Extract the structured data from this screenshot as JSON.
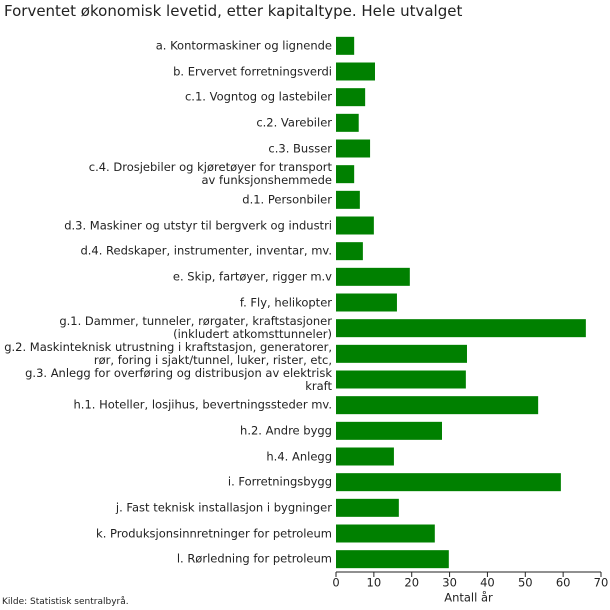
{
  "chart_data": {
    "type": "bar",
    "orientation": "horizontal",
    "title": "Forventet økonomisk levetid, etter kapitaltype. Hele utvalget",
    "source": "Kilde: Statistisk sentralbyrå.",
    "x_label": "Antall år",
    "categories": [
      "a. Kontormaskiner og lignende",
      "b. Ervervet forretningsverdi",
      "c.1. Vogntog og lastebiler",
      "c.2. Varebiler",
      "c.3. Busser",
      "c.4. Drosjebiler og kjøretøyer for transport\nav funksjonshemmede",
      "d.1. Personbiler",
      "d.3. Maskiner og utstyr til bergverk og industri",
      "d.4. Redskaper, instrumenter, inventar, mv.",
      "e. Skip, fartøyer, rigger m.v",
      "f. Fly, helikopter",
      "g.1. Dammer, tunneler, rørgater, kraftstasjoner\n(inkludert atkomsttunneler)",
      "g.2. Maskinteknisk utrustning i kraftstasjon, generatorer,\nrør, foring i sjakt/tunnel, luker, rister, etc,",
      "g.3. Anlegg for overføring og distribusjon av elektrisk kraft",
      "h.1. Hoteller, losjihus, bevertningssteder mv.",
      "h.2. Andre bygg",
      "h.4. Anlegg",
      "i. Forretningsbygg",
      "j. Fast teknisk installasjon i bygninger",
      "k. Produksjonsinnretninger for petroleum",
      "l. Rørledning for petroleum"
    ],
    "values": [
      4.8,
      10.3,
      7.7,
      6,
      9,
      4.8,
      6.3,
      10,
      7.1,
      19.5,
      16.1,
      66,
      34.6,
      34.3,
      53.4,
      28,
      15.3,
      59.4,
      16.6,
      26.1,
      29.8
    ],
    "color": "#008000",
    "xlim": [
      0,
      70
    ],
    "xticks": [
      0,
      10,
      20,
      30,
      40,
      50,
      60,
      70
    ]
  }
}
